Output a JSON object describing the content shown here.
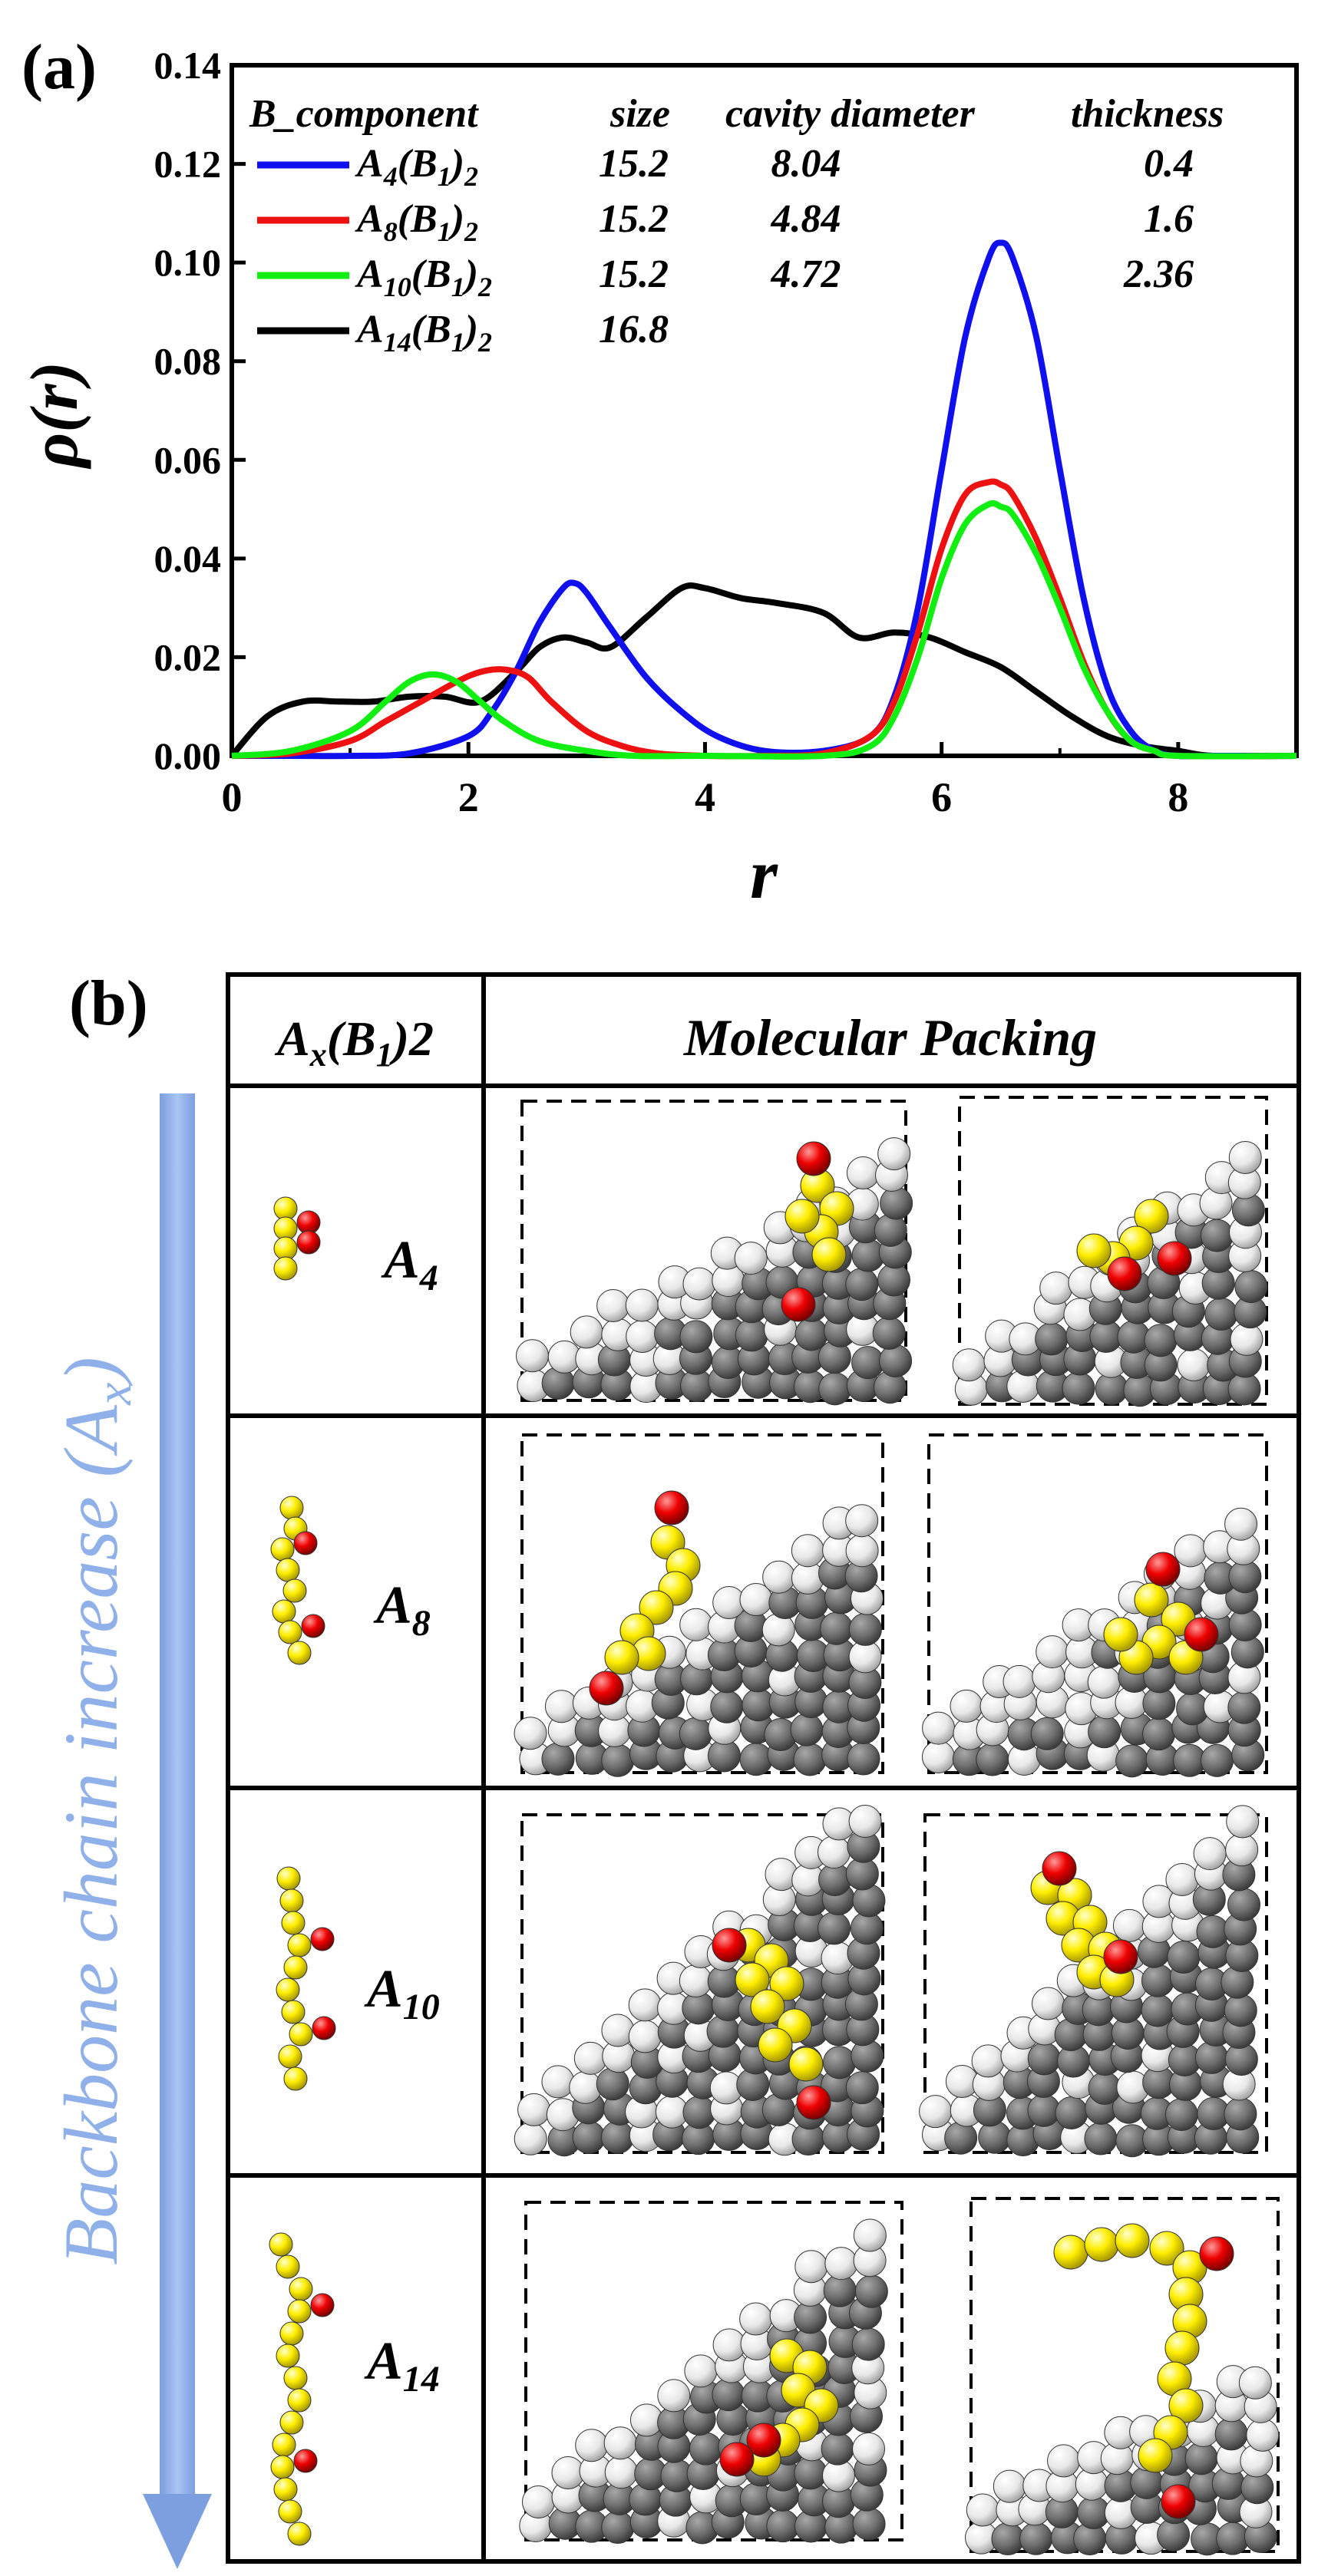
{
  "chart_data": {
    "type": "line",
    "panel_label": "(a)",
    "xlabel": "r",
    "ylabel": "ρ(r)",
    "xlim": [
      0,
      9
    ],
    "ylim": [
      0,
      0.14
    ],
    "xticks": [
      "0",
      "2",
      "4",
      "6",
      "8"
    ],
    "yticks": [
      "0.00",
      "0.02",
      "0.04",
      "0.06",
      "0.08",
      "0.10",
      "0.12",
      "0.14"
    ],
    "legend": {
      "header": {
        "name": "B_component",
        "size": "size",
        "cavity": "cavity diameter",
        "thickness": "thickness"
      },
      "placement": "top-left"
    },
    "series": [
      {
        "name": "A4(B1)2",
        "base": "A",
        "sub": "4",
        "color": "#1010ee",
        "size": "15.2",
        "cavity": "8.04",
        "thickness": "0.4",
        "x": [
          0,
          0.5,
          1.0,
          1.5,
          2.0,
          2.2,
          2.4,
          2.6,
          2.8,
          2.9,
          3.0,
          3.2,
          3.5,
          3.8,
          4.1,
          4.5,
          5.0,
          5.4,
          5.6,
          5.8,
          6.0,
          6.2,
          6.4,
          6.5,
          6.6,
          6.8,
          7.0,
          7.2,
          7.4,
          7.6,
          7.8,
          8.0,
          8.3,
          9.0
        ],
        "y": [
          0,
          0,
          0,
          0.0005,
          0.004,
          0.009,
          0.017,
          0.027,
          0.034,
          0.035,
          0.033,
          0.026,
          0.016,
          0.009,
          0.004,
          0.001,
          0.001,
          0.004,
          0.012,
          0.03,
          0.058,
          0.085,
          0.101,
          0.104,
          0.101,
          0.085,
          0.058,
          0.032,
          0.014,
          0.005,
          0.001,
          0,
          0,
          0
        ]
      },
      {
        "name": "A8(B1)2",
        "base": "A",
        "sub": "8",
        "color": "#ee1111",
        "size": "15.2",
        "cavity": "4.84",
        "thickness": "1.6",
        "x": [
          0,
          0.5,
          1.0,
          1.3,
          1.6,
          1.9,
          2.1,
          2.3,
          2.5,
          2.7,
          3.0,
          3.3,
          3.6,
          4.0,
          4.5,
          5.0,
          5.4,
          5.6,
          5.8,
          6.0,
          6.2,
          6.4,
          6.5,
          6.6,
          6.8,
          7.0,
          7.2,
          7.4,
          7.6,
          7.8,
          8.0,
          9.0
        ],
        "y": [
          0,
          0.0005,
          0.003,
          0.007,
          0.011,
          0.015,
          0.017,
          0.0175,
          0.016,
          0.011,
          0.005,
          0.002,
          0.0005,
          0,
          0,
          0.0005,
          0.004,
          0.011,
          0.025,
          0.042,
          0.053,
          0.0555,
          0.055,
          0.053,
          0.044,
          0.032,
          0.019,
          0.009,
          0.003,
          0.001,
          0,
          0
        ]
      },
      {
        "name": "A10(B1)2",
        "base": "A",
        "sub": "10",
        "color": "#11ee11",
        "size": "15.2",
        "cavity": "4.72",
        "thickness": "2.36",
        "x": [
          0,
          0.5,
          1.0,
          1.3,
          1.5,
          1.7,
          1.9,
          2.1,
          2.3,
          2.6,
          3.0,
          3.4,
          4.0,
          5.0,
          5.4,
          5.6,
          5.8,
          6.0,
          6.2,
          6.4,
          6.5,
          6.6,
          6.8,
          7.0,
          7.2,
          7.4,
          7.6,
          7.8,
          8.0,
          9.0
        ],
        "y": [
          0,
          0.001,
          0.005,
          0.011,
          0.015,
          0.0165,
          0.015,
          0.011,
          0.007,
          0.003,
          0.001,
          0,
          0,
          0,
          0.002,
          0.008,
          0.02,
          0.036,
          0.047,
          0.051,
          0.0505,
          0.049,
          0.041,
          0.03,
          0.018,
          0.009,
          0.003,
          0.001,
          0,
          0
        ]
      },
      {
        "name": "A14(B1)2",
        "base": "A",
        "sub": "14",
        "color": "#000000",
        "size": "16.8",
        "cavity": "",
        "thickness": "",
        "x": [
          0,
          0.3,
          0.6,
          0.9,
          1.2,
          1.5,
          1.8,
          2.1,
          2.4,
          2.6,
          2.8,
          3.0,
          3.2,
          3.5,
          3.8,
          4.0,
          4.3,
          4.6,
          5.0,
          5.3,
          5.6,
          5.9,
          6.2,
          6.5,
          6.8,
          7.1,
          7.4,
          7.7,
          8.0,
          8.3,
          9.0
        ],
        "y": [
          0,
          0.008,
          0.011,
          0.011,
          0.011,
          0.012,
          0.012,
          0.011,
          0.017,
          0.022,
          0.024,
          0.023,
          0.022,
          0.028,
          0.034,
          0.034,
          0.032,
          0.031,
          0.029,
          0.024,
          0.025,
          0.024,
          0.021,
          0.018,
          0.013,
          0.008,
          0.004,
          0.002,
          0.001,
          0,
          0
        ]
      }
    ]
  },
  "panel_b": {
    "label": "(b)",
    "arrow_text": "Backbone chain increase (A",
    "arrow_sub": "x",
    "arrow_close": ")",
    "header_left": {
      "base": "A",
      "sub": "x",
      "mid": "(B",
      "sub2": "1",
      "tail": ")2"
    },
    "header_right": "Molecular Packing",
    "rows": [
      {
        "base": "A",
        "sub": "4"
      },
      {
        "base": "A",
        "sub": "8"
      },
      {
        "base": "A",
        "sub": "10"
      },
      {
        "base": "A",
        "sub": "14"
      }
    ]
  },
  "colors": {
    "backbone": "#ffff00",
    "side": "#ee0000",
    "dark_bead": "#6e6e6e",
    "light_bead": "#e8e8e8",
    "arrow": "#8fb0e8"
  }
}
